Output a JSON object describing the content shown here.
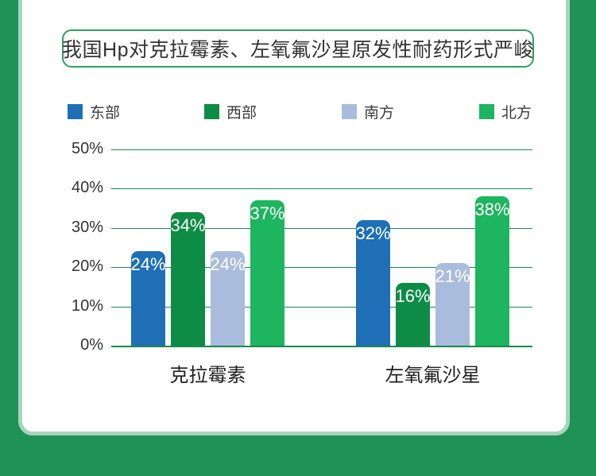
{
  "page": {
    "background_color": "#1e9355",
    "card_border_color": "#a8d4bc"
  },
  "title": {
    "text": "我国Hp对克拉霉素、左氧氟沙星原发性耐药形式严峻",
    "border_color": "#2f9f5f",
    "text_color": "#333333"
  },
  "legend": {
    "items": [
      {
        "label": "东部",
        "color": "#1e6fb5"
      },
      {
        "label": "西部",
        "color": "#0e8b45"
      },
      {
        "label": "南方",
        "color": "#a9bcde"
      },
      {
        "label": "北方",
        "color": "#1db55e"
      }
    ]
  },
  "chart_data": {
    "type": "bar",
    "title": "我国Hp对克拉霉素、左氧氟沙星原发性耐药形式严峻",
    "categories": [
      "克拉霉素",
      "左氧氟沙星"
    ],
    "series": [
      {
        "name": "东部",
        "color": "#1e6fb5",
        "values": [
          24,
          32
        ]
      },
      {
        "name": "西部",
        "color": "#0e8b45",
        "values": [
          34,
          16
        ]
      },
      {
        "name": "南方",
        "color": "#a9bcde",
        "values": [
          24,
          21
        ]
      },
      {
        "name": "北方",
        "color": "#1db55e",
        "values": [
          37,
          38
        ]
      }
    ],
    "value_suffix": "%",
    "xlabel": "",
    "ylabel": "",
    "ylim": [
      0,
      50
    ],
    "yticks": [
      "0%",
      "10%",
      "20%",
      "30%",
      "40%",
      "50%"
    ],
    "grid": true,
    "gridline_color": "#168a4d",
    "legend_position": "top"
  }
}
